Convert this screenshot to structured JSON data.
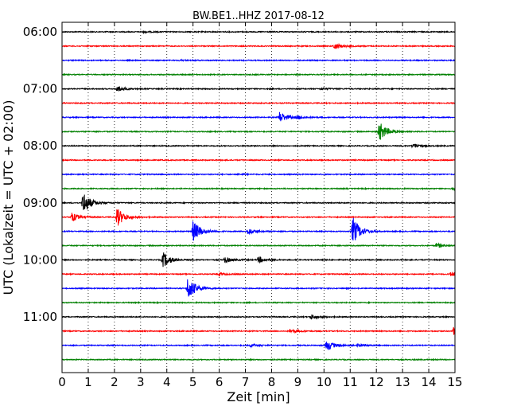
{
  "chart_data": {
    "type": "line",
    "title": "BW.BE1..HHZ 2017-08-12",
    "xlabel": "Zeit  [min]",
    "ylabel": "UTC (Lokalzeit = UTC + 02:00)",
    "xlim": [
      0,
      15
    ],
    "x_ticks": [
      "0",
      "1",
      "2",
      "3",
      "4",
      "5",
      "6",
      "7",
      "8",
      "9",
      "10",
      "11",
      "12",
      "13",
      "14",
      "15"
    ],
    "y_ticks": [
      {
        "label": "06:00",
        "trace": 0
      },
      {
        "label": "07:00",
        "trace": 4
      },
      {
        "label": "08:00",
        "trace": 8
      },
      {
        "label": "09:00",
        "trace": 12
      },
      {
        "label": "10:00",
        "trace": 16
      },
      {
        "label": "11:00",
        "trace": 20
      }
    ],
    "grid": {
      "vertical_dotted": true
    },
    "trace_minutes": 15,
    "color_cycle": [
      "#000000",
      "#ff0000",
      "#0000ff",
      "#008000"
    ],
    "series": [
      {
        "start": "06:00",
        "base_noise": 0.6,
        "events": [
          {
            "t": 3.1,
            "amp": 1.0
          }
        ]
      },
      {
        "start": "06:15",
        "base_noise": 0.6,
        "events": [
          {
            "t": 10.4,
            "amp": 4.0
          }
        ]
      },
      {
        "start": "06:30",
        "base_noise": 0.6,
        "events": [
          {
            "t": 4.5,
            "amp": 0.8
          }
        ]
      },
      {
        "start": "06:45",
        "base_noise": 0.6,
        "events": []
      },
      {
        "start": "07:00",
        "base_noise": 0.6,
        "events": [
          {
            "t": 2.1,
            "amp": 3.5
          },
          {
            "t": 9.9,
            "amp": 1.0
          }
        ]
      },
      {
        "start": "07:15",
        "base_noise": 0.6,
        "events": []
      },
      {
        "start": "07:30",
        "base_noise": 0.6,
        "events": [
          {
            "t": 8.3,
            "amp": 7.0
          },
          {
            "t": 9.0,
            "amp": 2.0
          }
        ]
      },
      {
        "start": "07:45",
        "base_noise": 0.6,
        "events": [
          {
            "t": 12.1,
            "amp": 13.0
          }
        ]
      },
      {
        "start": "08:00",
        "base_noise": 0.6,
        "events": [
          {
            "t": 13.4,
            "amp": 3.0
          }
        ]
      },
      {
        "start": "08:15",
        "base_noise": 0.6,
        "events": []
      },
      {
        "start": "08:30",
        "base_noise": 0.6,
        "events": [
          {
            "t": 6.7,
            "amp": 0.8
          }
        ]
      },
      {
        "start": "08:45",
        "base_noise": 0.6,
        "events": [
          {
            "t": 14.9,
            "amp": 1.5
          }
        ]
      },
      {
        "start": "09:00",
        "base_noise": 0.6,
        "events": [
          {
            "t": 0.8,
            "amp": 15.0
          }
        ]
      },
      {
        "start": "09:15",
        "base_noise": 0.6,
        "events": [
          {
            "t": 0.35,
            "amp": 6.0
          },
          {
            "t": 2.1,
            "amp": 12.0
          }
        ]
      },
      {
        "start": "09:30",
        "base_noise": 0.6,
        "events": [
          {
            "t": 5.0,
            "amp": 14.0
          },
          {
            "t": 7.1,
            "amp": 4.0
          },
          {
            "t": 11.1,
            "amp": 18.0
          }
        ]
      },
      {
        "start": "09:45",
        "base_noise": 0.6,
        "events": [
          {
            "t": 14.3,
            "amp": 3.0
          }
        ]
      },
      {
        "start": "10:00",
        "base_noise": 0.6,
        "events": [
          {
            "t": 3.85,
            "amp": 10.0
          },
          {
            "t": 6.2,
            "amp": 4.0
          },
          {
            "t": 7.5,
            "amp": 4.0
          }
        ]
      },
      {
        "start": "10:15",
        "base_noise": 0.6,
        "events": [
          {
            "t": 6.0,
            "amp": 1.5
          },
          {
            "t": 14.85,
            "amp": 3.0
          }
        ]
      },
      {
        "start": "10:30",
        "base_noise": 0.6,
        "events": [
          {
            "t": 4.8,
            "amp": 16.0
          }
        ]
      },
      {
        "start": "10:45",
        "base_noise": 0.6,
        "events": []
      },
      {
        "start": "11:00",
        "base_noise": 0.6,
        "events": [
          {
            "t": 9.5,
            "amp": 3.0
          }
        ]
      },
      {
        "start": "11:15",
        "base_noise": 0.6,
        "events": [
          {
            "t": 8.7,
            "amp": 2.5
          },
          {
            "t": 14.95,
            "amp": 5.0
          }
        ]
      },
      {
        "start": "11:30",
        "base_noise": 0.6,
        "events": [
          {
            "t": 7.2,
            "amp": 2.0
          },
          {
            "t": 10.1,
            "amp": 7.0
          },
          {
            "t": 11.3,
            "amp": 2.0
          }
        ]
      },
      {
        "start": "11:45",
        "base_noise": 0.6,
        "events": []
      }
    ]
  }
}
